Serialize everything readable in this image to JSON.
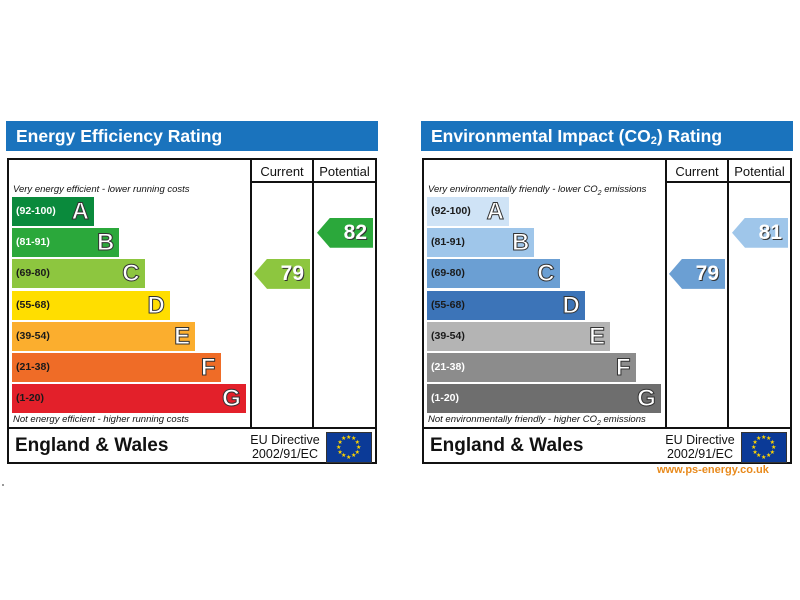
{
  "panels": [
    {
      "id": "ee",
      "title": "Energy Efficiency Rating",
      "col_current": "Current",
      "col_potential": "Potential",
      "top_caption": "Very energy efficient - lower running costs",
      "bottom_caption": "Not energy efficient - higher running costs",
      "region": "England & Wales",
      "directive_line1": "EU Directive",
      "directive_line2": "2002/91/EC",
      "bands": [
        {
          "range": "(92-100)",
          "letter": "A",
          "color": "#0a8a3c",
          "range_color": "#ffffff"
        },
        {
          "range": "(81-91)",
          "letter": "B",
          "color": "#2ba83b",
          "range_color": "#ffffff"
        },
        {
          "range": "(69-80)",
          "letter": "C",
          "color": "#8dc63f",
          "range_color": "#1a1a1a"
        },
        {
          "range": "(55-68)",
          "letter": "D",
          "color": "#ffde00",
          "range_color": "#1a1a1a"
        },
        {
          "range": "(39-54)",
          "letter": "E",
          "color": "#fbae2e",
          "range_color": "#1a1a1a"
        },
        {
          "range": "(21-38)",
          "letter": "F",
          "color": "#ef6c27",
          "range_color": "#1a1a1a"
        },
        {
          "range": "(1-20)",
          "letter": "G",
          "color": "#e3202a",
          "range_color": "#1a1a1a"
        }
      ],
      "current": {
        "value": "79",
        "color": "#8dc63f"
      },
      "potential": {
        "value": "82",
        "color": "#2ba83b"
      }
    },
    {
      "id": "ei",
      "title_prefix": "Environmental Impact (CO",
      "title_sub": "2",
      "title_suffix": ") Rating",
      "col_current": "Current",
      "col_potential": "Potential",
      "top_caption_prefix": "Very environmentally friendly - lower CO",
      "top_caption_sub": "2",
      "top_caption_suffix": " emissions",
      "bottom_caption_prefix": "Not environmentally friendly - higher CO",
      "bottom_caption_sub": "2",
      "bottom_caption_suffix": " emissions",
      "region": "England & Wales",
      "directive_line1": "EU Directive",
      "directive_line2": "2002/91/EC",
      "bands": [
        {
          "range": "(92-100)",
          "letter": "A",
          "color": "#cfe3f6",
          "range_color": "#1a1a1a"
        },
        {
          "range": "(81-91)",
          "letter": "B",
          "color": "#9fc6ea",
          "range_color": "#1a1a1a"
        },
        {
          "range": "(69-80)",
          "letter": "C",
          "color": "#6b9fd3",
          "range_color": "#1a1a1a"
        },
        {
          "range": "(55-68)",
          "letter": "D",
          "color": "#3c74b8",
          "range_color": "#1a1a1a"
        },
        {
          "range": "(39-54)",
          "letter": "E",
          "color": "#b4b4b4",
          "range_color": "#1a1a1a"
        },
        {
          "range": "(21-38)",
          "letter": "F",
          "color": "#8c8c8c",
          "range_color": "#ffffff"
        },
        {
          "range": "(1-20)",
          "letter": "G",
          "color": "#6e6e6e",
          "range_color": "#ffffff"
        }
      ],
      "current": {
        "value": "79",
        "color": "#6b9fd3"
      },
      "potential": {
        "value": "81",
        "color": "#9fc6ea"
      }
    }
  ],
  "website": "www.ps-energy.co.uk",
  "chart_data": [
    {
      "type": "bar",
      "title": "Energy Efficiency Rating",
      "categories": [
        "A",
        "B",
        "C",
        "D",
        "E",
        "F",
        "G"
      ],
      "category_ranges": [
        "(92-100)",
        "(81-91)",
        "(69-80)",
        "(55-68)",
        "(39-54)",
        "(21-38)",
        "(1-20)"
      ],
      "current": 79,
      "potential": 82
    },
    {
      "type": "bar",
      "title": "Environmental Impact (CO2) Rating",
      "categories": [
        "A",
        "B",
        "C",
        "D",
        "E",
        "F",
        "G"
      ],
      "category_ranges": [
        "(92-100)",
        "(81-91)",
        "(69-80)",
        "(55-68)",
        "(39-54)",
        "(21-38)",
        "(1-20)"
      ],
      "current": 79,
      "potential": 81
    }
  ]
}
